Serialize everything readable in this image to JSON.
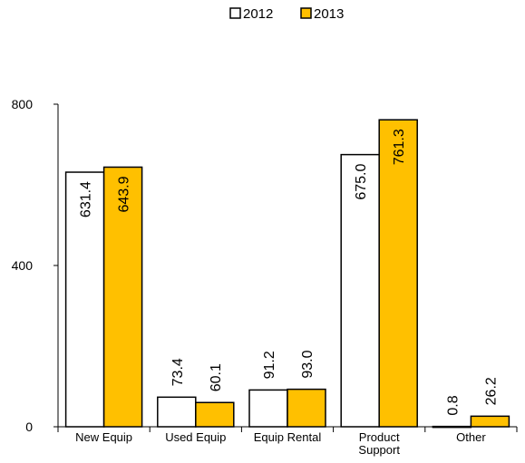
{
  "chart_data": {
    "type": "bar",
    "title": "",
    "xlabel": "",
    "ylabel": "",
    "categories": [
      "New Equip",
      "Used Equip",
      "Equip Rental",
      "Product Support",
      "Other"
    ],
    "series": [
      {
        "name": "2012",
        "values": [
          631.4,
          73.4,
          91.2,
          675.0,
          0.8
        ],
        "labels": [
          "631.4",
          "73.4",
          "91.2",
          "675.0",
          "0.8"
        ],
        "color": "#ffffff"
      },
      {
        "name": "2013",
        "values": [
          643.9,
          60.1,
          93.0,
          761.3,
          26.2
        ],
        "labels": [
          "643.9",
          "60.1",
          "93.0",
          "761.3",
          "26.2"
        ],
        "color": "#ffc000"
      }
    ],
    "ylim": [
      0,
      800
    ],
    "yticks": [
      "0",
      "400",
      "800"
    ],
    "grid": false,
    "legend_position": "top"
  }
}
